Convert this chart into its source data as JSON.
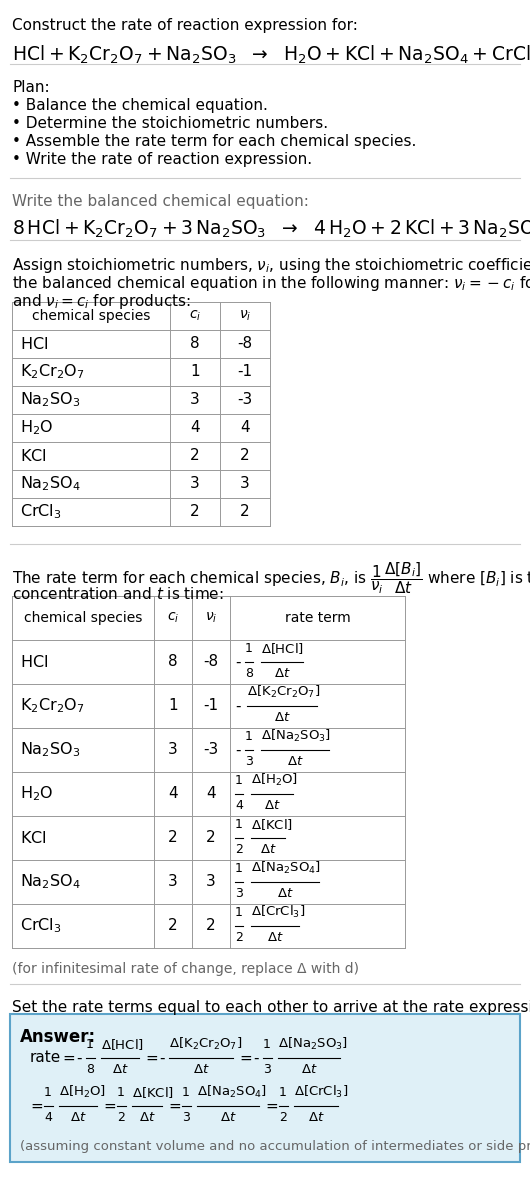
{
  "bg_color": "#ffffff",
  "text_color": "#000000",
  "gray_color": "#666666",
  "light_gray": "#888888",
  "table_line_color": "#999999",
  "answer_box_bg": "#dff0f7",
  "answer_box_border": "#5ba3c9",
  "fig_width": 5.3,
  "fig_height": 12.04,
  "dpi": 100,
  "species_math": [
    "HCl",
    "K_2Cr_2O_7",
    "Na_2SO_3",
    "H_2O",
    "KCl",
    "Na_2SO_4",
    "CrCl_3"
  ],
  "ci_vals": [
    "8",
    "1",
    "3",
    "4",
    "2",
    "3",
    "2"
  ],
  "ni_vals": [
    "-8",
    "-1",
    "-3",
    "4",
    "2",
    "3",
    "2"
  ]
}
